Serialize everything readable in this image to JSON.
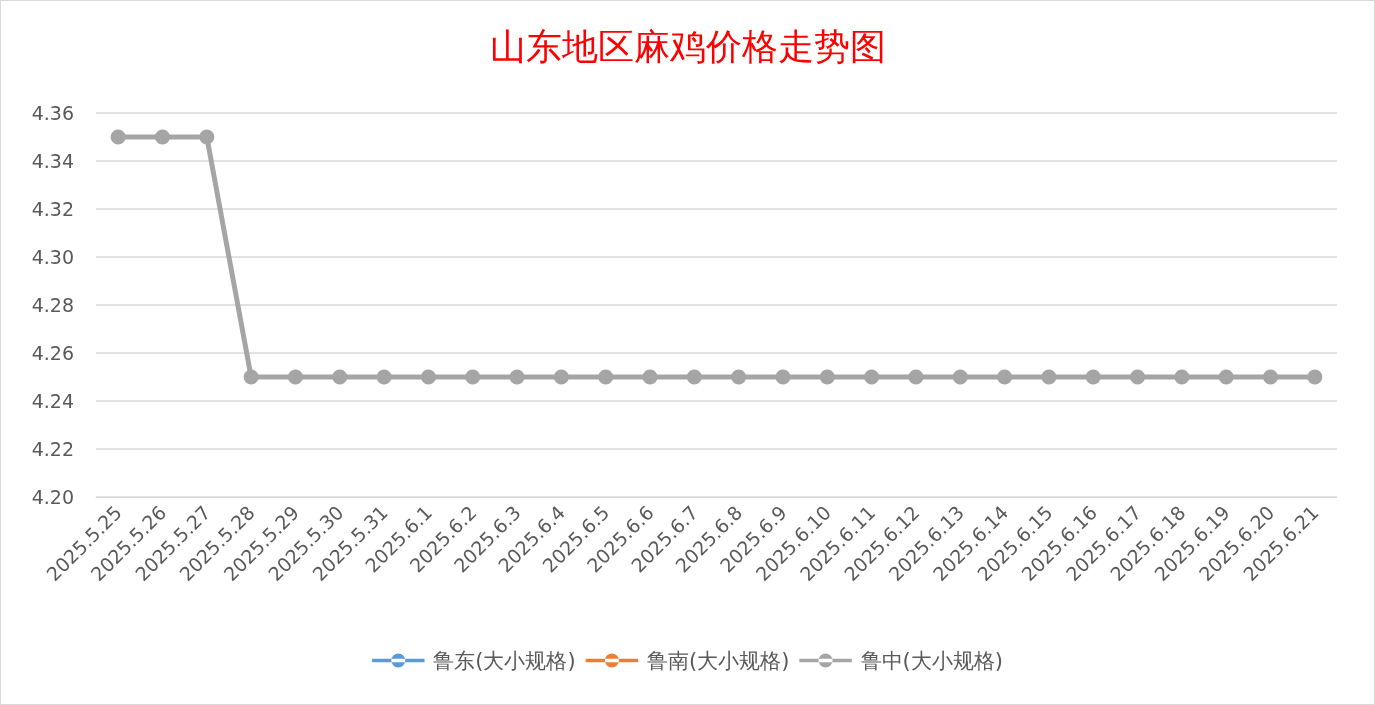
{
  "chart_data": {
    "type": "line",
    "title": "山东地区麻鸡价格走势图",
    "categories": [
      "2025.5.25",
      "2025.5.26",
      "2025.5.27",
      "2025.5.28",
      "2025.5.29",
      "2025.5.30",
      "2025.5.31",
      "2025.6.1",
      "2025.6.2",
      "2025.6.3",
      "2025.6.4",
      "2025.6.5",
      "2025.6.6",
      "2025.6.7",
      "2025.6.8",
      "2025.6.9",
      "2025.6.10",
      "2025.6.11",
      "2025.6.12",
      "2025.6.13",
      "2025.6.14",
      "2025.6.15",
      "2025.6.16",
      "2025.6.17",
      "2025.6.18",
      "2025.6.19",
      "2025.6.20",
      "2025.6.21"
    ],
    "series": [
      {
        "name": "鲁东(大小规格)",
        "color": "#5b9bd5",
        "values": [
          null,
          null,
          null,
          null,
          null,
          null,
          null,
          null,
          null,
          null,
          null,
          null,
          null,
          null,
          null,
          null,
          null,
          null,
          null,
          null,
          null,
          null,
          null,
          null,
          null,
          null,
          null,
          null
        ]
      },
      {
        "name": "鲁南(大小规格)",
        "color": "#ed7d31",
        "values": [
          null,
          null,
          null,
          null,
          null,
          null,
          null,
          null,
          null,
          null,
          null,
          null,
          null,
          null,
          null,
          null,
          null,
          null,
          null,
          null,
          null,
          null,
          null,
          null,
          null,
          null,
          null,
          null
        ]
      },
      {
        "name": "鲁中(大小规格)",
        "color": "#a5a5a5",
        "values": [
          4.35,
          4.35,
          4.35,
          4.25,
          4.25,
          4.25,
          4.25,
          4.25,
          4.25,
          4.25,
          4.25,
          4.25,
          4.25,
          4.25,
          4.25,
          4.25,
          4.25,
          4.25,
          4.25,
          4.25,
          4.25,
          4.25,
          4.25,
          4.25,
          4.25,
          4.25,
          4.25,
          4.25
        ]
      }
    ],
    "ylim": [
      4.2,
      4.36
    ],
    "yticks": [
      {
        "value": 4.2,
        "label": "4.20"
      },
      {
        "value": 4.22,
        "label": "4.22"
      },
      {
        "value": 4.24,
        "label": "4.24"
      },
      {
        "value": 4.26,
        "label": "4.26"
      },
      {
        "value": 4.28,
        "label": "4.28"
      },
      {
        "value": 4.3,
        "label": "4.30"
      },
      {
        "value": 4.32,
        "label": "4.32"
      },
      {
        "value": 4.34,
        "label": "4.34"
      },
      {
        "value": 4.36,
        "label": "4.36"
      }
    ],
    "grid": "y",
    "legend": "bottom",
    "marker": "circle",
    "line_style": "solid"
  }
}
